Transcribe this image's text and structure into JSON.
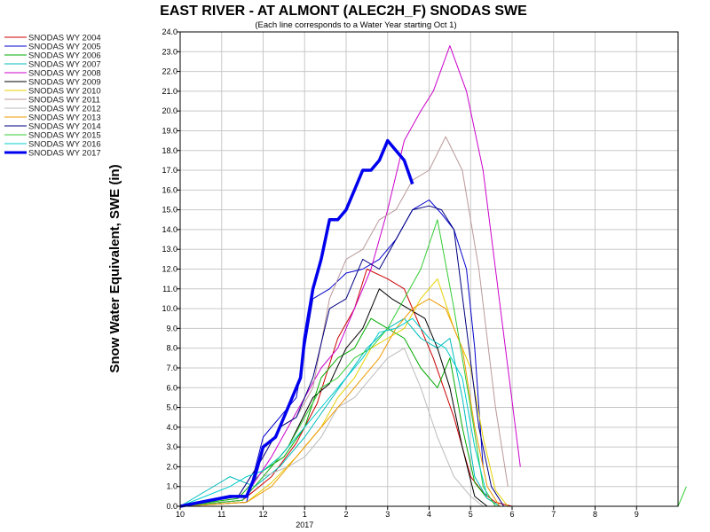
{
  "chart_data": {
    "type": "line",
    "title": "EAST RIVER - AT ALMONT (ALEC2H_F) SNODAS SWE",
    "subtitle": "(Each line corresponds to a Water Year starting Oct 1)",
    "ylabel": "Snow Water Equivalent, SWE (in)",
    "xlabel": "",
    "ylim": [
      0,
      24
    ],
    "yticks": [
      "0.0",
      "1.0",
      "2.0",
      "3.0",
      "4.0",
      "5.0",
      "6.0",
      "7.0",
      "8.0",
      "9.0",
      "10.0",
      "11.0",
      "12.0",
      "13.0",
      "14.0",
      "15.0",
      "16.0",
      "17.0",
      "18.0",
      "19.0",
      "20.0",
      "21.0",
      "22.0",
      "23.0",
      "24.0"
    ],
    "xticks": [
      {
        "label": "10",
        "x": 0
      },
      {
        "label": "11",
        "x": 1
      },
      {
        "label": "12",
        "x": 2
      },
      {
        "label": "1",
        "x": 3,
        "sub": "2017"
      },
      {
        "label": "2",
        "x": 4
      },
      {
        "label": "3",
        "x": 5
      },
      {
        "label": "4",
        "x": 6
      },
      {
        "label": "5",
        "x": 7
      },
      {
        "label": "6",
        "x": 8
      },
      {
        "label": "7",
        "x": 9
      },
      {
        "label": "8",
        "x": 10
      },
      {
        "label": "9",
        "x": 11
      }
    ],
    "xlim": [
      0,
      12
    ],
    "grid": true,
    "legend": "left",
    "series": [
      {
        "name": "SNODAS WY 2004",
        "color": "#cc0000",
        "width": 1,
        "x": [
          0,
          1.5,
          2.2,
          2.8,
          3.3,
          3.8,
          4.2,
          4.5,
          5.0,
          5.4,
          5.8,
          6.1,
          6.6,
          7.0,
          7.3,
          7.6,
          8.0
        ],
        "y": [
          0,
          0.3,
          1.5,
          3.2,
          5.2,
          8.5,
          10.0,
          12.0,
          11.5,
          11.0,
          9.0,
          7.5,
          4.5,
          1.5,
          0.7,
          0.2,
          0
        ]
      },
      {
        "name": "SNODAS WY 2005",
        "color": "#0000cc",
        "width": 1,
        "x": [
          0,
          1.6,
          2.0,
          2.4,
          2.8,
          3.2,
          3.6,
          4.0,
          4.4,
          4.8,
          5.2,
          5.6,
          6.0,
          6.3,
          6.6,
          6.9,
          7.1,
          7.3
        ],
        "y": [
          0,
          0.2,
          3.5,
          4.5,
          5.5,
          10.5,
          11.0,
          11.8,
          12.0,
          12.5,
          13.5,
          15.0,
          15.5,
          14.8,
          14.0,
          12.0,
          8.0,
          2.0
        ]
      },
      {
        "name": "SNODAS WY 2006",
        "color": "#00aa00",
        "width": 1,
        "x": [
          0,
          1.4,
          2.0,
          2.5,
          3.0,
          3.4,
          3.8,
          4.2,
          4.6,
          5.0,
          5.4,
          5.8,
          6.2,
          6.5,
          6.8,
          7.1,
          7.4,
          7.7
        ],
        "y": [
          0,
          0.4,
          1.8,
          2.5,
          4.0,
          6.5,
          7.5,
          8.0,
          9.5,
          9.0,
          8.5,
          7.0,
          6.0,
          7.5,
          4.0,
          1.2,
          0.4,
          0
        ]
      },
      {
        "name": "SNODAS WY 2007",
        "color": "#00bbbb",
        "width": 1,
        "x": [
          0,
          1.2,
          1.8,
          2.4,
          3.0,
          3.5,
          4.0,
          4.5,
          5.0,
          5.4,
          5.8,
          6.2,
          6.5,
          6.8,
          7.1,
          7.4,
          7.7
        ],
        "y": [
          0,
          1.5,
          1.0,
          2.0,
          3.5,
          5.0,
          6.5,
          8.0,
          9.0,
          9.5,
          8.5,
          8.0,
          8.5,
          5.5,
          1.5,
          0.4,
          0
        ]
      },
      {
        "name": "SNODAS WY 2008",
        "color": "#cc00cc",
        "width": 1,
        "x": [
          0,
          1.5,
          2.2,
          2.6,
          3.0,
          3.4,
          3.8,
          4.2,
          4.6,
          5.0,
          5.4,
          5.8,
          6.1,
          6.5,
          6.9,
          7.3,
          7.6,
          7.9,
          8.2
        ],
        "y": [
          0,
          0.3,
          2.5,
          4.0,
          5.5,
          7.0,
          8.0,
          10.0,
          12.0,
          15.0,
          18.5,
          20.0,
          21.0,
          23.3,
          21.0,
          17.0,
          12.0,
          7.0,
          2.0
        ]
      },
      {
        "name": "SNODAS WY 2009",
        "color": "#000000",
        "width": 1,
        "x": [
          0,
          1.5,
          2.0,
          2.6,
          3.2,
          3.6,
          4.0,
          4.4,
          4.8,
          5.1,
          5.5,
          5.9,
          6.2,
          6.5,
          6.8,
          7.1,
          7.4
        ],
        "y": [
          0,
          0.3,
          1.5,
          3.0,
          5.5,
          6.2,
          8.0,
          9.0,
          11.0,
          10.5,
          10.0,
          9.5,
          8.0,
          6.0,
          3.0,
          0.5,
          0
        ]
      },
      {
        "name": "SNODAS WY 2010",
        "color": "#e6d000",
        "width": 1,
        "x": [
          0,
          1.6,
          2.2,
          2.8,
          3.4,
          3.8,
          4.2,
          4.6,
          5.0,
          5.4,
          5.8,
          6.2,
          6.6,
          7.0,
          7.3,
          7.6,
          7.9
        ],
        "y": [
          0,
          0.2,
          1.2,
          2.5,
          4.0,
          5.5,
          6.5,
          8.0,
          8.5,
          9.0,
          10.5,
          11.5,
          9.0,
          7.0,
          3.5,
          0.8,
          0
        ]
      },
      {
        "name": "SNODAS WY 2011",
        "color": "#bb9999",
        "width": 1,
        "x": [
          0,
          1.4,
          2.0,
          2.4,
          2.8,
          3.2,
          3.6,
          4.0,
          4.4,
          4.8,
          5.2,
          5.6,
          6.0,
          6.4,
          6.8,
          7.2,
          7.6,
          7.9
        ],
        "y": [
          0,
          0.5,
          2.5,
          4.0,
          4.5,
          6.0,
          10.5,
          12.5,
          13.0,
          14.5,
          15.0,
          16.5,
          17.0,
          18.7,
          17.0,
          12.0,
          5.0,
          1.0
        ]
      },
      {
        "name": "SNODAS WY 2012",
        "color": "#bbbbbb",
        "width": 1,
        "x": [
          0,
          1.5,
          2.0,
          2.6,
          3.0,
          3.4,
          3.8,
          4.2,
          4.6,
          5.0,
          5.4,
          5.8,
          6.2,
          6.6,
          7.0,
          7.3
        ],
        "y": [
          0,
          0.3,
          1.5,
          2.0,
          2.5,
          3.5,
          5.0,
          5.5,
          6.5,
          7.5,
          8.0,
          6.0,
          3.5,
          1.5,
          0.5,
          0
        ]
      },
      {
        "name": "SNODAS WY 2013",
        "color": "#ee9900",
        "width": 1,
        "x": [
          0,
          1.6,
          2.2,
          2.8,
          3.2,
          3.6,
          4.0,
          4.4,
          4.8,
          5.2,
          5.6,
          6.0,
          6.4,
          6.8,
          7.1,
          7.4,
          7.7
        ],
        "y": [
          0,
          0.2,
          1.0,
          2.5,
          3.5,
          4.5,
          5.5,
          6.5,
          7.5,
          9.0,
          10.0,
          10.5,
          10.0,
          8.0,
          4.0,
          1.0,
          0
        ]
      },
      {
        "name": "SNODAS WY 2014",
        "color": "#000080",
        "width": 1,
        "x": [
          0,
          1.4,
          2.0,
          2.4,
          2.8,
          3.2,
          3.6,
          4.0,
          4.4,
          4.8,
          5.2,
          5.6,
          6.0,
          6.3,
          6.6,
          6.9,
          7.2,
          7.5,
          7.8
        ],
        "y": [
          0,
          0.5,
          2.5,
          4.0,
          4.5,
          6.5,
          10.0,
          10.5,
          12.5,
          12.0,
          13.5,
          15.0,
          15.2,
          15.0,
          14.0,
          9.0,
          4.0,
          1.0,
          0
        ]
      },
      {
        "name": "SNODAS WY 2015",
        "color": "#33cc33",
        "width": 1,
        "x": [
          0,
          1.5,
          2.0,
          2.6,
          3.0,
          3.4,
          3.8,
          4.2,
          4.6,
          5.0,
          5.4,
          5.8,
          6.2,
          6.6,
          7.0,
          7.3,
          7.6,
          12.0,
          12.2
        ],
        "y": [
          0,
          0.3,
          1.5,
          3.0,
          4.5,
          6.0,
          6.5,
          7.5,
          8.0,
          9.0,
          10.5,
          12.0,
          14.5,
          10.0,
          5.0,
          1.0,
          0,
          0,
          1.0
        ]
      },
      {
        "name": "SNODAS WY 2016",
        "color": "#00cccc",
        "width": 1,
        "x": [
          0,
          1.2,
          1.6,
          2.0,
          2.4,
          2.8,
          3.2,
          3.6,
          4.0,
          4.4,
          4.8,
          5.2,
          5.6,
          6.0,
          6.4,
          6.8,
          7.1,
          7.4
        ],
        "y": [
          0,
          1.0,
          1.5,
          1.8,
          2.5,
          3.5,
          4.5,
          5.5,
          6.5,
          7.5,
          8.8,
          9.0,
          9.5,
          8.5,
          8.0,
          6.5,
          3.0,
          0.5
        ]
      },
      {
        "name": "SNODAS WY 2017",
        "color": "#0000ee",
        "width": 3.5,
        "x": [
          0,
          1.2,
          1.6,
          1.8,
          2.0,
          2.3,
          2.6,
          2.9,
          3.0,
          3.2,
          3.4,
          3.6,
          3.8,
          4.0,
          4.2,
          4.4,
          4.6,
          4.8,
          5.0,
          5.2,
          5.4,
          5.6
        ],
        "y": [
          0,
          0.5,
          0.5,
          1.5,
          3.0,
          3.5,
          5.0,
          6.5,
          8.5,
          11.0,
          12.5,
          14.5,
          14.5,
          15.0,
          16.0,
          17.0,
          17.0,
          17.5,
          18.5,
          18.0,
          17.5,
          16.3
        ]
      }
    ]
  }
}
